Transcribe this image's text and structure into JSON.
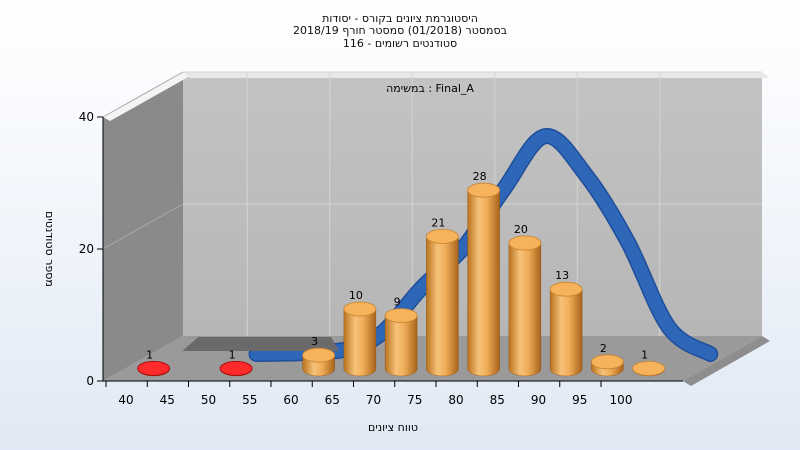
{
  "titles": {
    "line1": "היסטוגרמת ציונים בקורס - יסודות",
    "line2": "בסמסטר  (01/2018)  סמסטר חורף 2018/19",
    "line3": "סטודנטים רשומים - 116"
  },
  "chart_data": {
    "type": "bar",
    "annotation": "במשימה : Final_A",
    "xlabel": "טווח ציונים",
    "ylabel": "מספר סטודנטים",
    "x_ticks": [
      "40",
      "45",
      "50",
      "55",
      "60",
      "65",
      "70",
      "75",
      "80",
      "85",
      "90",
      "95",
      "100"
    ],
    "y_ticks": [
      0,
      20,
      40
    ],
    "ylim": [
      0,
      40
    ],
    "bins": [
      {
        "from": 40,
        "to": 45,
        "value": 1,
        "color": "#d90000"
      },
      {
        "from": 50,
        "to": 55,
        "value": 1,
        "color": "#d90000"
      },
      {
        "from": 60,
        "to": 65,
        "value": 3,
        "color": "#e39a3a"
      },
      {
        "from": 65,
        "to": 70,
        "value": 10,
        "color": "#e39a3a"
      },
      {
        "from": 70,
        "to": 75,
        "value": 9,
        "color": "#e39a3a"
      },
      {
        "from": 75,
        "to": 80,
        "value": 21,
        "color": "#e39a3a"
      },
      {
        "from": 80,
        "to": 85,
        "value": 28,
        "color": "#e39a3a"
      },
      {
        "from": 85,
        "to": 90,
        "value": 20,
        "color": "#e39a3a"
      },
      {
        "from": 90,
        "to": 95,
        "value": 13,
        "color": "#e39a3a"
      },
      {
        "from": 95,
        "to": 100,
        "value": 2,
        "color": "#e39a3a"
      },
      {
        "from": 100,
        "to": 105,
        "value": 1,
        "color": "#e39a3a"
      }
    ],
    "distribution_curve": {
      "color": "#2e66b8",
      "x": [
        50,
        60,
        65,
        70,
        75,
        80,
        85,
        90,
        95,
        100,
        105
      ],
      "y": [
        0,
        0.5,
        3,
        10,
        16,
        25,
        33,
        27,
        17,
        4,
        0
      ]
    },
    "grid": true
  }
}
